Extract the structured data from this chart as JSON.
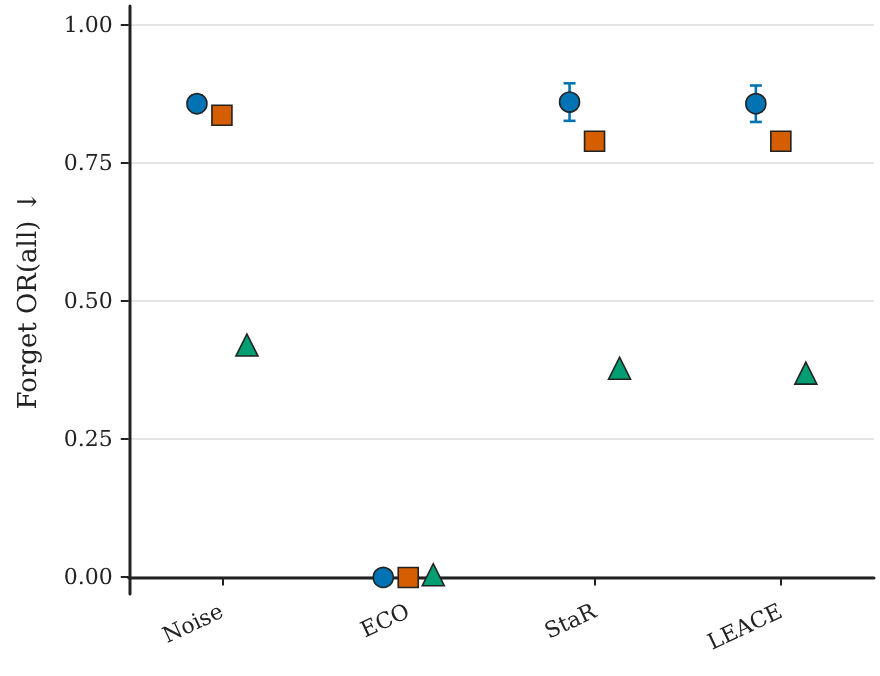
{
  "chart_data": {
    "type": "scatter",
    "ylabel": "Forget OR(all) ↓",
    "categories": [
      "Noise",
      "ECO",
      "StaR",
      "LEACE"
    ],
    "series": [
      {
        "color": "#0173b2",
        "marker": "circle",
        "values": [
          0.858,
          0.0,
          0.861,
          0.858
        ],
        "errors": [
          0.015,
          null,
          0.034,
          0.033
        ]
      },
      {
        "color": "#d55e00",
        "marker": "square",
        "values": [
          0.837,
          0.0,
          0.79,
          0.79
        ]
      },
      {
        "color": "#029e73",
        "marker": "triangle",
        "values": [
          0.421,
          0.005,
          0.379,
          0.37
        ]
      }
    ],
    "ylim": [
      -0.03,
      1.035
    ],
    "yticks": [
      {
        "value": 0,
        "label": "0.00"
      },
      {
        "value": 0.25,
        "label": "0.25"
      },
      {
        "value": 0.5,
        "label": "0.50"
      },
      {
        "value": 0.75,
        "label": "0.75"
      },
      {
        "value": 1,
        "label": "1.00"
      }
    ],
    "grid": "y"
  }
}
